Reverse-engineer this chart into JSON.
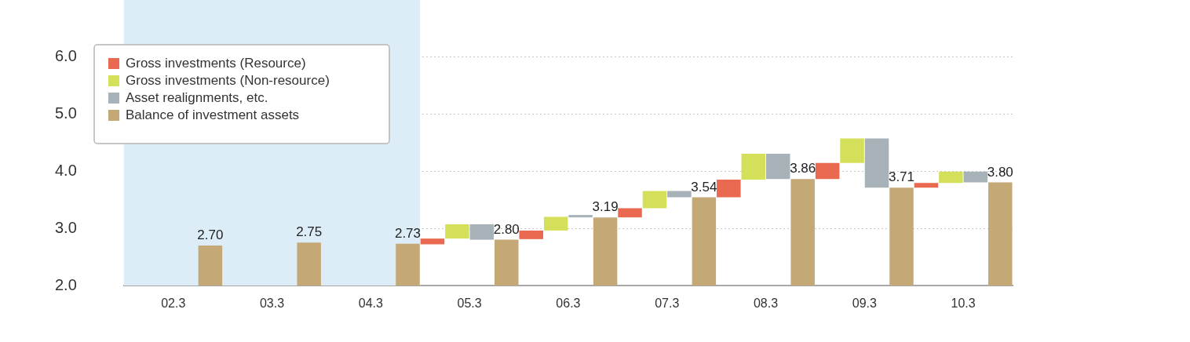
{
  "chart_data": {
    "type": "bar",
    "categories": [
      "02.3",
      "03.3",
      "04.3",
      "05.3",
      "06.3",
      "07.3",
      "08.3",
      "09.3",
      "10.3"
    ],
    "series": [
      {
        "name": "Gross investments (Resource)",
        "color": "#e96a50",
        "base": [
          null,
          null,
          null,
          2.72,
          2.81,
          3.19,
          3.54,
          3.86,
          3.71
        ],
        "values": [
          null,
          null,
          null,
          0.1,
          0.15,
          0.16,
          0.31,
          0.28,
          0.08
        ]
      },
      {
        "name": "Gross investments (Non-resource)",
        "color": "#d5e05a",
        "base": [
          null,
          null,
          null,
          2.82,
          2.96,
          3.35,
          3.85,
          4.14,
          3.79
        ],
        "values": [
          null,
          null,
          null,
          0.25,
          0.24,
          0.3,
          0.45,
          0.43,
          0.2
        ]
      },
      {
        "name": "Asset realignments, etc.",
        "color": "#a6b1b8",
        "base": [
          null,
          null,
          null,
          3.07,
          3.2,
          3.65,
          4.3,
          4.57,
          3.99
        ],
        "values": [
          null,
          null,
          null,
          -0.27,
          -0.01,
          -0.11,
          -0.44,
          -0.86,
          -0.19
        ]
      },
      {
        "name": "Balance of investment assets",
        "color": "#c4a977",
        "values": [
          2.7,
          2.75,
          2.73,
          2.8,
          3.19,
          3.54,
          3.86,
          3.71,
          3.8
        ],
        "value_labels": [
          "2.70",
          "2.75",
          "2.73",
          "2.80",
          "3.19",
          "3.54",
          "3.86",
          "3.71",
          "3.80"
        ]
      }
    ],
    "ylim": [
      2,
      6
    ],
    "yticks": [
      {
        "value": 2,
        "label": "2.0"
      },
      {
        "value": 3,
        "label": "3.0"
      },
      {
        "value": 4,
        "label": "4.0"
      },
      {
        "value": 5,
        "label": "5.0"
      },
      {
        "value": 6,
        "label": "6.0"
      }
    ],
    "grid": "y",
    "legend": "top left",
    "bands": [
      {
        "axis": "x",
        "from": "02.3",
        "to": "04.3",
        "color": "#dcedf8"
      }
    ]
  }
}
